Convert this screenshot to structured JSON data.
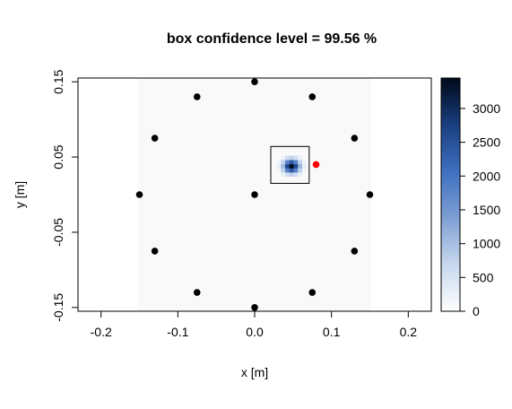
{
  "chart_data": {
    "type": "scatter",
    "title": "box confidence level =  99.56 %",
    "xlabel": "x [m]",
    "ylabel": "y [m]",
    "xlim": [
      -0.23,
      0.23
    ],
    "ylim": [
      -0.155,
      0.155
    ],
    "xticks": [
      "-0.2",
      "-0.1",
      "0.0",
      "0.1",
      "0.2"
    ],
    "xtick_values": [
      -0.2,
      -0.1,
      0.0,
      0.1,
      0.2
    ],
    "yticks": [
      "-0.15",
      "-0.05",
      "0.05",
      "0.15"
    ],
    "ytick_values": [
      -0.15,
      -0.05,
      0.05,
      0.15
    ],
    "grid": false,
    "background_region": {
      "x": [
        -0.152,
        0.152
      ],
      "y": [
        -0.155,
        0.155
      ],
      "color": "#f9f9f9"
    },
    "microphones": {
      "color": "#000000",
      "points": [
        [
          0.0,
          0.15
        ],
        [
          -0.075,
          0.13
        ],
        [
          0.075,
          0.13
        ],
        [
          -0.13,
          0.075
        ],
        [
          0.13,
          0.075
        ],
        [
          -0.15,
          0.0
        ],
        [
          0.0,
          0.0
        ],
        [
          0.15,
          0.0
        ],
        [
          -0.13,
          -0.075
        ],
        [
          0.13,
          -0.075
        ],
        [
          -0.075,
          -0.13
        ],
        [
          0.075,
          -0.13
        ],
        [
          0.0,
          -0.15
        ]
      ]
    },
    "source": {
      "color": "#ff0000",
      "point": [
        0.08,
        0.04
      ]
    },
    "box": {
      "x": [
        0.021,
        0.071
      ],
      "y": [
        0.015,
        0.064
      ]
    },
    "heatmap_peak": {
      "x": 0.048,
      "y": 0.038,
      "value": 3450
    },
    "colorbar": {
      "range": [
        0,
        3450
      ],
      "ticks": [
        "0",
        "500",
        "1000",
        "1500",
        "2000",
        "2500",
        "3000"
      ],
      "tick_values": [
        0,
        500,
        1000,
        1500,
        2000,
        2500,
        3000
      ],
      "colors": [
        "#ffffff",
        "#c8d8ee",
        "#7fa0d4",
        "#3f6fc0",
        "#1a3f80",
        "#000a1a"
      ]
    }
  }
}
